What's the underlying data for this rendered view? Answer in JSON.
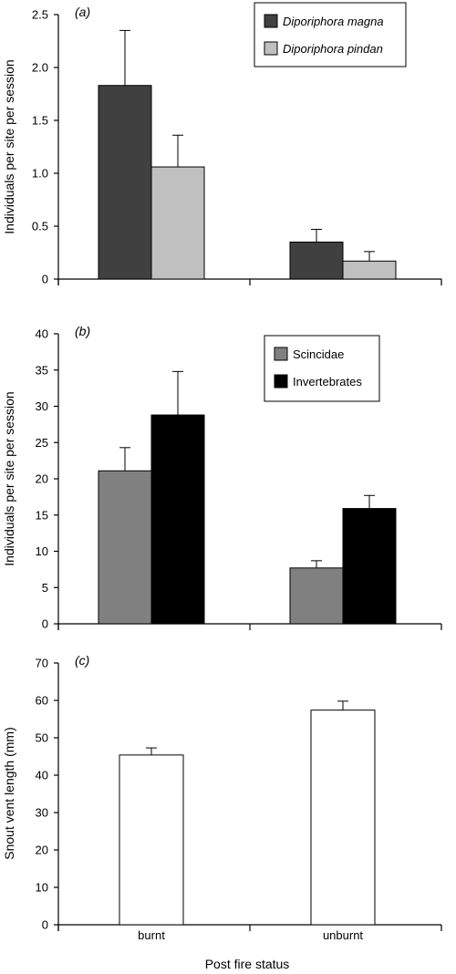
{
  "figure": {
    "xlabel": "Post fire status",
    "categories": [
      "burnt",
      "unburnt"
    ]
  },
  "chart_data": [
    {
      "panel": "a",
      "panel_label": "(a)",
      "type": "bar",
      "categories": [
        "burnt",
        "unburnt"
      ],
      "ylabel": "Individuals per site per session",
      "ylim": [
        0,
        2.5
      ],
      "yticks": [
        0,
        0.5,
        1.0,
        1.5,
        2.0,
        2.5
      ],
      "ytick_labels": [
        "0",
        "0.5",
        "1.0",
        "1.5",
        "2.0",
        "2.5"
      ],
      "legend_placement": "top-right",
      "legend_italic": true,
      "series": [
        {
          "name": "Diporiphora magna",
          "color": "#404040",
          "values": [
            1.83,
            0.35
          ],
          "errors": [
            0.52,
            0.12
          ]
        },
        {
          "name": "Diporiphora pindan",
          "color": "#c0c0c0",
          "values": [
            1.06,
            0.17
          ],
          "errors": [
            0.3,
            0.09
          ]
        }
      ]
    },
    {
      "panel": "b",
      "panel_label": "(b)",
      "type": "bar",
      "categories": [
        "burnt",
        "unburnt"
      ],
      "ylabel": "Individuals per site per session",
      "ylim": [
        0,
        40
      ],
      "yticks": [
        0,
        5,
        10,
        15,
        20,
        25,
        30,
        35,
        40
      ],
      "ytick_labels": [
        "0",
        "5",
        "10",
        "15",
        "20",
        "25",
        "30",
        "35",
        "40"
      ],
      "legend_placement": "top-right",
      "legend_italic": false,
      "series": [
        {
          "name": "Scincidae",
          "color": "#808080",
          "values": [
            21.1,
            7.7
          ],
          "errors": [
            3.2,
            1.0
          ]
        },
        {
          "name": "Invertebrates",
          "color": "#000000",
          "values": [
            28.8,
            15.9
          ],
          "errors": [
            6.0,
            1.8
          ]
        }
      ]
    },
    {
      "panel": "c",
      "panel_label": "(c)",
      "type": "bar",
      "categories": [
        "burnt",
        "unburnt"
      ],
      "ylabel": "Snout vent length (mm)",
      "ylim": [
        0,
        70
      ],
      "yticks": [
        0,
        10,
        20,
        30,
        40,
        50,
        60,
        70
      ],
      "ytick_labels": [
        "0",
        "10",
        "20",
        "30",
        "40",
        "50",
        "60",
        "70"
      ],
      "series": [
        {
          "color": "#ffffff",
          "values": [
            45.4,
            57.4
          ],
          "errors": [
            1.9,
            2.4
          ]
        }
      ]
    }
  ]
}
